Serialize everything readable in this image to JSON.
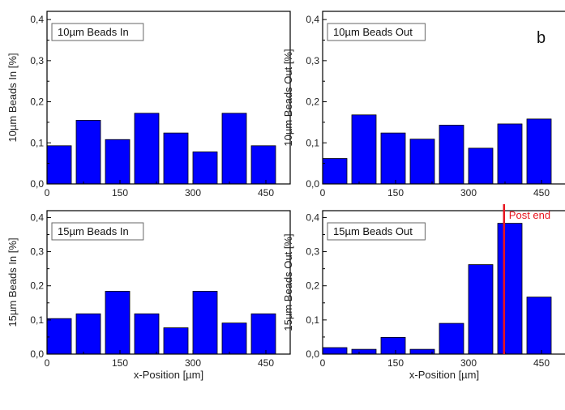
{
  "panel_letter": "b",
  "chart_data": [
    {
      "type": "bar",
      "title": "10µm Beads In",
      "ylabel": "10µm Beads In [%]",
      "xlabel": "",
      "x": [
        25,
        85,
        145,
        205,
        265,
        325,
        385,
        445
      ],
      "values": [
        0.093,
        0.155,
        0.108,
        0.172,
        0.124,
        0.078,
        0.172,
        0.093
      ],
      "xlim": [
        0,
        500
      ],
      "ylim": [
        0,
        0.42
      ],
      "xticks": [
        "0",
        "150",
        "300",
        "450"
      ],
      "xtick_values": [
        0,
        150,
        300,
        450
      ],
      "yticks": [
        "0,0",
        "0,1",
        "0,2",
        "0,3",
        "0,4"
      ],
      "ytick_values": [
        0,
        0.1,
        0.2,
        0.3,
        0.4
      ],
      "bar_width": 50,
      "color": "#0000ff",
      "grid": false
    },
    {
      "type": "bar",
      "title": "10µm Beads Out",
      "ylabel": "10µm Beads Out [%]",
      "xlabel": "",
      "x": [
        25,
        85,
        145,
        205,
        265,
        325,
        385,
        445
      ],
      "values": [
        0.062,
        0.168,
        0.124,
        0.109,
        0.143,
        0.087,
        0.146,
        0.158
      ],
      "xlim": [
        0,
        500
      ],
      "ylim": [
        0,
        0.42
      ],
      "xticks": [
        "0",
        "150",
        "300",
        "450"
      ],
      "xtick_values": [
        0,
        150,
        300,
        450
      ],
      "yticks": [
        "0,0",
        "0,1",
        "0,2",
        "0,3",
        "0,4"
      ],
      "ytick_values": [
        0,
        0.1,
        0.2,
        0.3,
        0.4
      ],
      "bar_width": 50,
      "color": "#0000ff",
      "grid": false
    },
    {
      "type": "bar",
      "title": "15µm Beads In",
      "ylabel": "15µm Beads In [%]",
      "xlabel": "x-Position [µm]",
      "x": [
        25,
        85,
        145,
        205,
        265,
        325,
        385,
        445
      ],
      "values": [
        0.104,
        0.118,
        0.184,
        0.118,
        0.077,
        0.184,
        0.091,
        0.118
      ],
      "xlim": [
        0,
        500
      ],
      "ylim": [
        0,
        0.42
      ],
      "xticks": [
        "0",
        "150",
        "300",
        "450"
      ],
      "xtick_values": [
        0,
        150,
        300,
        450
      ],
      "yticks": [
        "0,0",
        "0,1",
        "0,2",
        "0,3",
        "0,4"
      ],
      "ytick_values": [
        0,
        0.1,
        0.2,
        0.3,
        0.4
      ],
      "bar_width": 50,
      "color": "#0000ff",
      "grid": false
    },
    {
      "type": "bar",
      "title": "15µm Beads Out",
      "ylabel": "15µm Beads Out [%]",
      "xlabel": "x-Position [µm]",
      "x": [
        25,
        85,
        145,
        205,
        265,
        325,
        385,
        445
      ],
      "values": [
        0.019,
        0.014,
        0.049,
        0.014,
        0.09,
        0.262,
        0.383,
        0.167
      ],
      "xlim": [
        0,
        500
      ],
      "ylim": [
        0,
        0.42
      ],
      "xticks": [
        "0",
        "150",
        "300",
        "450"
      ],
      "xtick_values": [
        0,
        150,
        300,
        450
      ],
      "yticks": [
        "0,0",
        "0,1",
        "0,2",
        "0,3",
        "0,4"
      ],
      "ytick_values": [
        0,
        0.1,
        0.2,
        0.3,
        0.4
      ],
      "bar_width": 50,
      "color": "#0000ff",
      "grid": false,
      "annotation": {
        "text": "Post end",
        "x": 373,
        "color": "#e8141e"
      }
    }
  ]
}
